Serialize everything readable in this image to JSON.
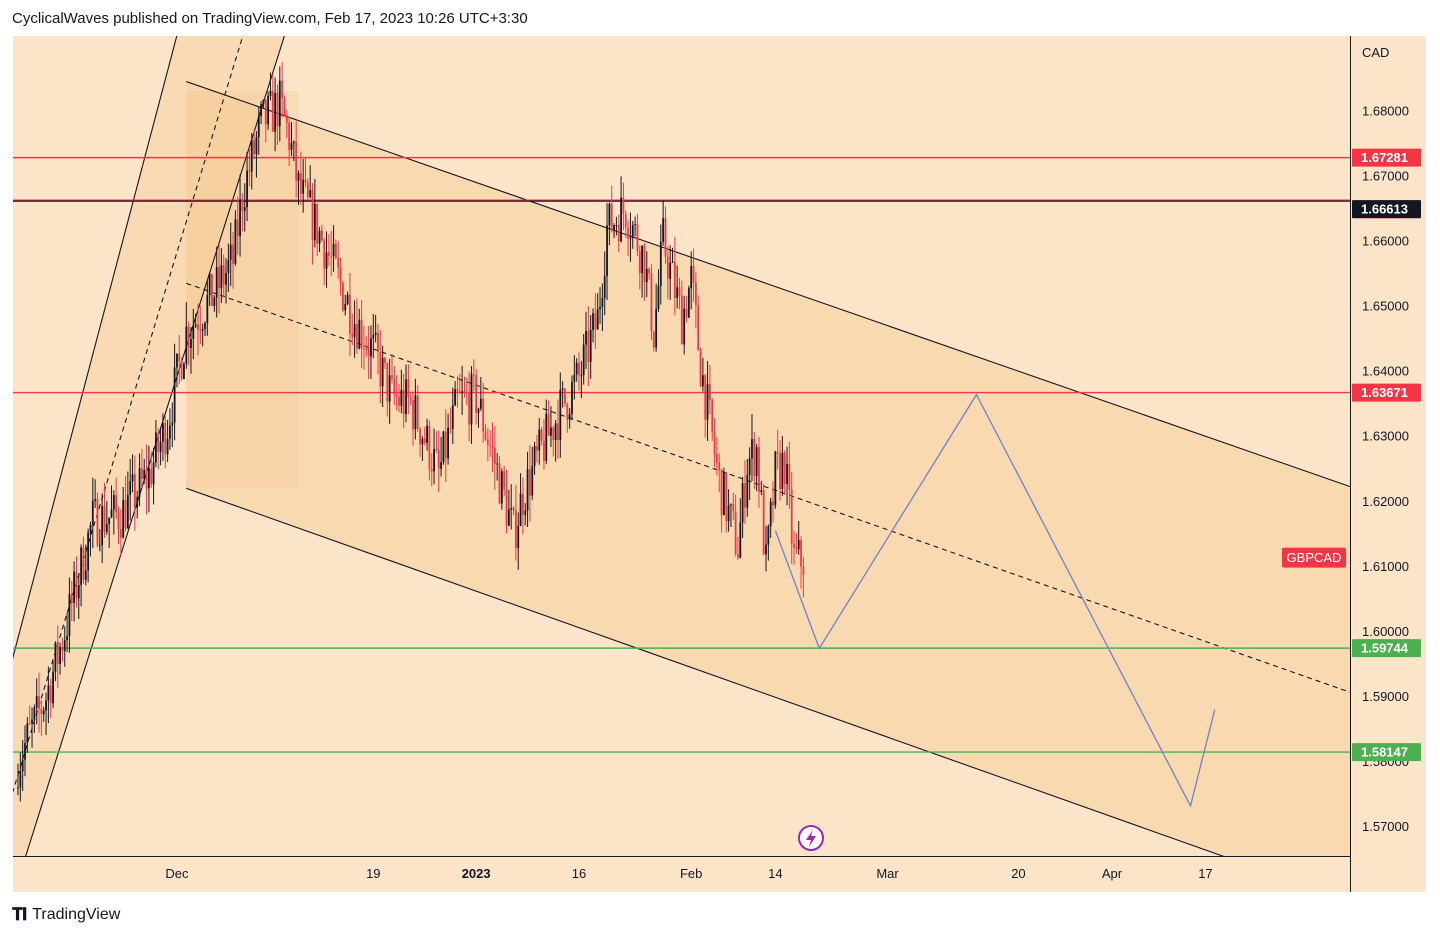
{
  "header": {
    "text": "CyclicalWaves published on TradingView.com, Feb 17, 2023 10:26 UTC+3:30"
  },
  "footer": {
    "brand": "TradingView",
    "logo_icon": "tradingview-logo-icon"
  },
  "chart_data": {
    "type": "candlestick",
    "symbol_label": "GBPCAD",
    "currency": "CAD",
    "ylim": [
      1.5655,
      1.6915
    ],
    "y_ticks": [
      "1.68000",
      "1.67000",
      "1.66000",
      "1.65000",
      "1.64000",
      "1.63000",
      "1.62000",
      "1.61000",
      "1.60000",
      "1.59000",
      "1.58000",
      "1.57000"
    ],
    "x_ticks": [
      {
        "label": "Dec",
        "bar": 17,
        "bold": false
      },
      {
        "label": "19",
        "bar": 38,
        "bold": false
      },
      {
        "label": "2023",
        "bar": 49,
        "bold": true
      },
      {
        "label": "16",
        "bar": 60,
        "bold": false
      },
      {
        "label": "Feb",
        "bar": 72,
        "bold": false
      },
      {
        "label": "14",
        "bar": 81,
        "bold": false
      },
      {
        "label": "Mar",
        "bar": 93,
        "bold": false
      },
      {
        "label": "20",
        "bar": 107,
        "bold": false
      },
      {
        "label": "Apr",
        "bar": 117,
        "bold": false
      },
      {
        "label": "17",
        "bar": 127,
        "bold": false
      }
    ],
    "horizontal_levels": [
      {
        "price": 1.67281,
        "label": "1.67281",
        "color": "#f23645"
      },
      {
        "price": 1.66626,
        "label": "1.66626",
        "color": "#f23645"
      },
      {
        "price": 1.66613,
        "label": "1.66613",
        "color": "#131722"
      },
      {
        "price": 1.63671,
        "label": "1.63671",
        "color": "#f23645"
      },
      {
        "price": 1.59744,
        "label": "1.59744",
        "color": "#4caf50"
      },
      {
        "price": 1.58147,
        "label": "1.58147",
        "color": "#4caf50"
      }
    ],
    "colors": {
      "up": "#131722",
      "down": "#f23645",
      "projection": "#6f80ce",
      "channel_fill": "#f7cf9c"
    },
    "close_path": [
      [
        0,
        1.58
      ],
      [
        3,
        1.59
      ],
      [
        5,
        1.6
      ],
      [
        8,
        1.617
      ],
      [
        11,
        1.618
      ],
      [
        14,
        1.624
      ],
      [
        16,
        1.632
      ],
      [
        18,
        1.646
      ],
      [
        21,
        1.652
      ],
      [
        23,
        1.657
      ],
      [
        24,
        1.667
      ],
      [
        26,
        1.678
      ],
      [
        28,
        1.681
      ],
      [
        29,
        1.676
      ],
      [
        30,
        1.668
      ],
      [
        32,
        1.662
      ],
      [
        34,
        1.655
      ],
      [
        36,
        1.648
      ],
      [
        38,
        1.643
      ],
      [
        40,
        1.636
      ],
      [
        42,
        1.635
      ],
      [
        44,
        1.628
      ],
      [
        45,
        1.624
      ],
      [
        47,
        1.635
      ],
      [
        49,
        1.636
      ],
      [
        51,
        1.626
      ],
      [
        53,
        1.615
      ],
      [
        54,
        1.621
      ],
      [
        56,
        1.628
      ],
      [
        58,
        1.634
      ],
      [
        60,
        1.639
      ],
      [
        62,
        1.648
      ],
      [
        63,
        1.662
      ],
      [
        65,
        1.665
      ],
      [
        67,
        1.657
      ],
      [
        68,
        1.646
      ],
      [
        69,
        1.66
      ],
      [
        71,
        1.648
      ],
      [
        72,
        1.654
      ],
      [
        73,
        1.641
      ],
      [
        75,
        1.623
      ],
      [
        77,
        1.613
      ],
      [
        78,
        1.626
      ],
      [
        79,
        1.628
      ],
      [
        80,
        1.61
      ],
      [
        81,
        1.624
      ],
      [
        82,
        1.626
      ],
      [
        83,
        1.611
      ],
      [
        84,
        1.611
      ]
    ],
    "projection_path": [
      [
        81,
        1.6155
      ],
      [
        85.7,
        1.5974
      ],
      [
        102.5,
        1.6364
      ],
      [
        125.4,
        1.5732
      ],
      [
        128,
        1.588
      ]
    ],
    "channel_up": {
      "lower": [
        [
          0.5,
          1.564
        ],
        [
          23,
          1.6665
        ]
      ],
      "upper": [
        [
          0,
          1.599
        ],
        [
          19,
          1.7025
        ]
      ],
      "mid": [
        [
          0,
          1.578
        ],
        [
          24,
          1.6913
        ]
      ]
    },
    "channel_down": {
      "upper": [
        [
          18,
          1.6845
        ],
        [
          120,
          1.6335
        ]
      ],
      "lower": [
        [
          18,
          1.622
        ],
        [
          120,
          1.57
        ]
      ],
      "mid": [
        [
          18,
          1.6535
        ],
        [
          120,
          1.602
        ]
      ]
    }
  }
}
